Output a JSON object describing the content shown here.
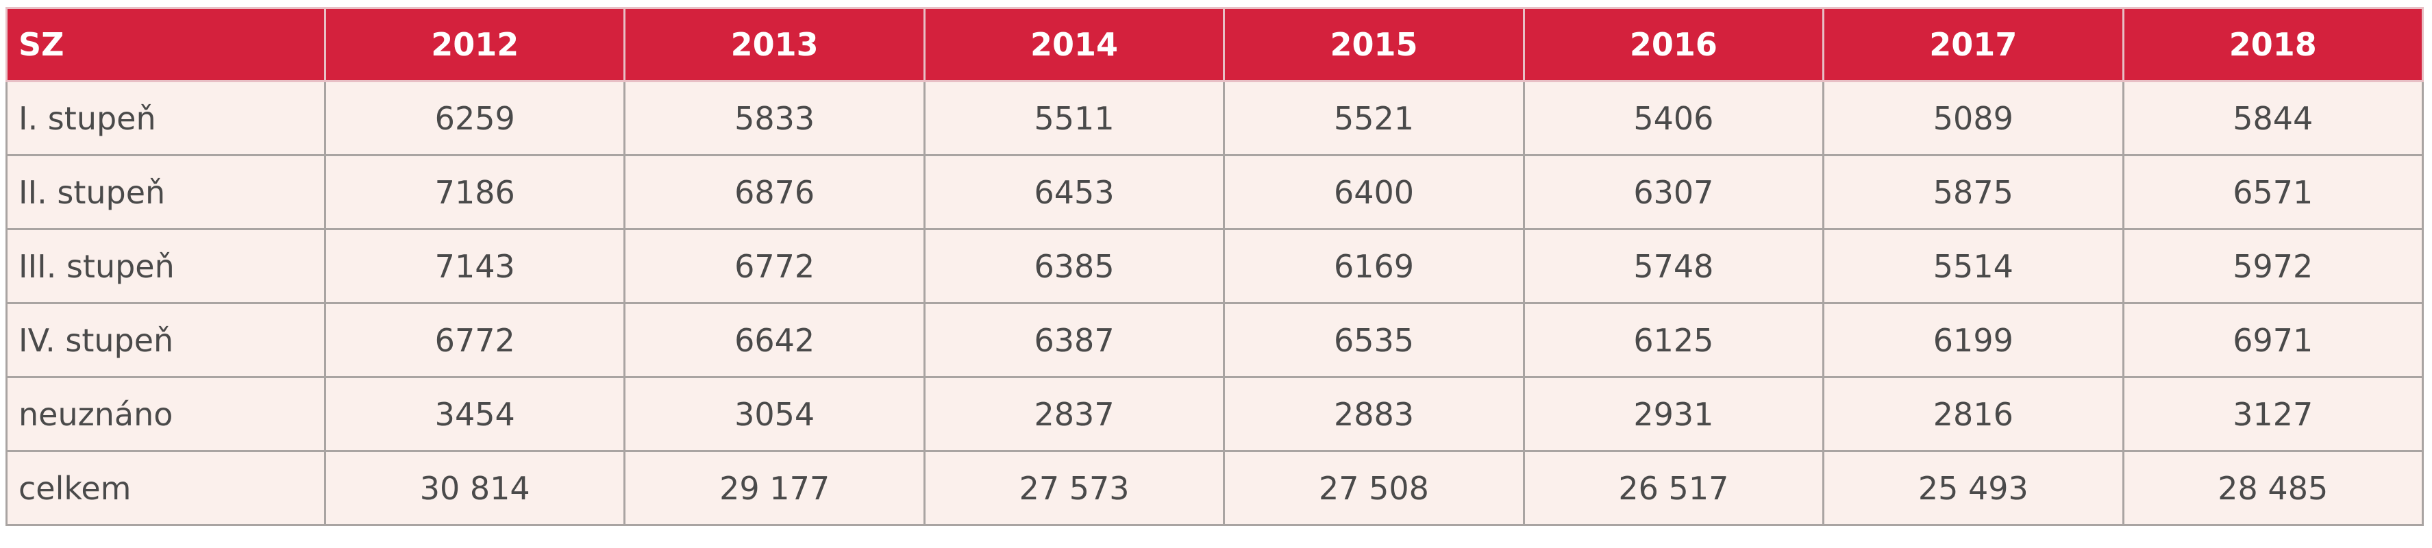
{
  "table": {
    "header": [
      "SZ",
      "2012",
      "2013",
      "2014",
      "2015",
      "2016",
      "2017",
      "2018"
    ],
    "rows": [
      [
        "I. stupeň",
        "6259",
        "5833",
        "5511",
        "5521",
        "5406",
        "5089",
        "5844"
      ],
      [
        "II. stupeň",
        "7186",
        "6876",
        "6453",
        "6400",
        "6307",
        "5875",
        "6571"
      ],
      [
        "III. stupeň",
        "7143",
        "6772",
        "6385",
        "6169",
        "5748",
        "5514",
        "5972"
      ],
      [
        "IV. stupeň",
        "6772",
        "6642",
        "6387",
        "6535",
        "6125",
        "6199",
        "6971"
      ],
      [
        "neuznáno",
        "3454",
        "3054",
        "2837",
        "2883",
        "2931",
        "2816",
        "3127"
      ],
      [
        "celkem",
        "30 814",
        "29 177",
        "27 573",
        "27 508",
        "26 517",
        "25 493",
        "28 485"
      ]
    ]
  }
}
